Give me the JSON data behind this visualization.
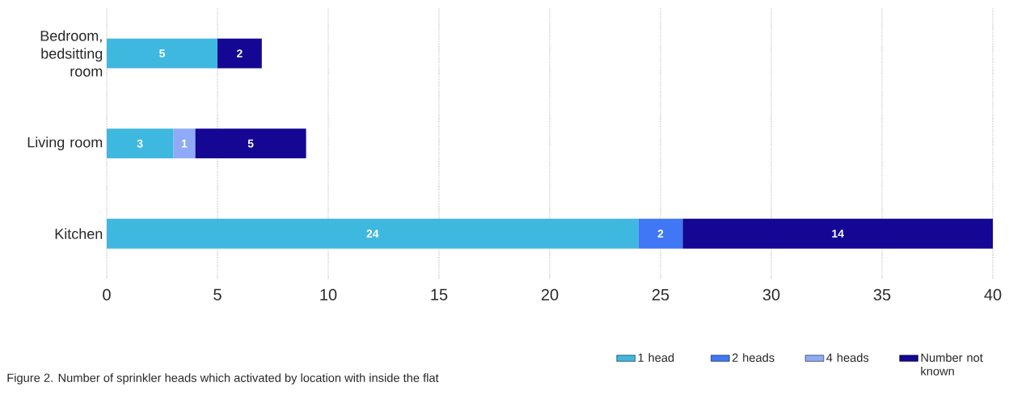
{
  "chart_data": {
    "type": "bar",
    "orientation": "horizontal",
    "stacked": true,
    "categories": [
      "Bedroom, bedsitting room",
      "Living room",
      "Kitchen"
    ],
    "series": [
      {
        "name": "1 head",
        "color": "#3fb8e0",
        "values": [
          5,
          3,
          24
        ]
      },
      {
        "name": "2 heads",
        "color": "#3f77f5",
        "values": [
          null,
          null,
          2
        ]
      },
      {
        "name": "4 heads",
        "color": "#8faaf7",
        "values": [
          null,
          1,
          null
        ]
      },
      {
        "name": "Number not known",
        "color": "#130793",
        "values": [
          2,
          5,
          14
        ]
      }
    ],
    "xlim": [
      0,
      40
    ],
    "xticks": [
      0,
      5,
      10,
      15,
      20,
      25,
      30,
      35,
      40
    ],
    "grid": "x",
    "data_labels": true,
    "legend": "bottom right",
    "annotations": [
      "Figure 2. Number of sprinkler heads which activated by location with inside the flat"
    ]
  }
}
